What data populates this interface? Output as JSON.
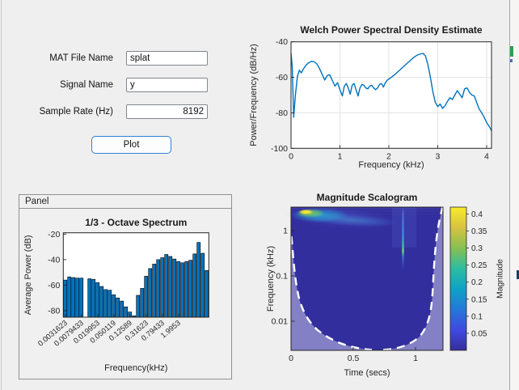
{
  "app": {
    "background": "#f0f0f0",
    "accent_blue": "#0072BD",
    "form": {
      "fields": [
        {
          "label": "MAT File Name",
          "value": "splat",
          "align": "left"
        },
        {
          "label": "Signal Name",
          "value": "y",
          "align": "left"
        },
        {
          "label": "Sample Rate (Hz)",
          "value": "8192",
          "align": "right"
        }
      ],
      "plot_button_label": "Plot"
    },
    "panel_title": "Panel"
  },
  "desktop_sliver": {
    "divider_color": "#a8a8a8",
    "fragments": [
      {
        "name": "green-fragment",
        "color": "#2f9e4f"
      },
      {
        "name": "blue-fragment",
        "color": "#4a6fd4"
      },
      {
        "name": "navy-fragment",
        "color": "#1d3e63"
      }
    ]
  },
  "chart_data": [
    {
      "type": "line",
      "title": "Welch Power Spectral Density Estimate",
      "xlabel": "Frequency (kHz)",
      "ylabel": "Power/Frequency (dB/Hz)",
      "xlim": [
        0,
        4.1
      ],
      "ylim": [
        -100,
        -40
      ],
      "xticks": [
        0,
        1,
        2,
        3,
        4
      ],
      "yticks": [
        -100,
        -80,
        -60,
        -40
      ],
      "grid": true,
      "line_color": "#0072BD",
      "series": [
        {
          "name": "PSD",
          "points": [
            [
              0,
              -46.5
            ],
            [
              0.025,
              -54
            ],
            [
              0.055,
              -82.5
            ],
            [
              0.09,
              -70
            ],
            [
              0.13,
              -59.5
            ],
            [
              0.17,
              -56
            ],
            [
              0.21,
              -57.5
            ],
            [
              0.26,
              -55
            ],
            [
              0.31,
              -53
            ],
            [
              0.36,
              -51.8
            ],
            [
              0.42,
              -51
            ],
            [
              0.48,
              -51.3
            ],
            [
              0.53,
              -52.5
            ],
            [
              0.58,
              -55
            ],
            [
              0.64,
              -58.5
            ],
            [
              0.69,
              -61.5
            ],
            [
              0.74,
              -59
            ],
            [
              0.79,
              -58.5
            ],
            [
              0.85,
              -62
            ],
            [
              0.9,
              -65
            ],
            [
              0.95,
              -63
            ],
            [
              1,
              -67
            ],
            [
              1.05,
              -70.5
            ],
            [
              1.09,
              -65
            ],
            [
              1.13,
              -63.5
            ],
            [
              1.17,
              -66
            ],
            [
              1.21,
              -69.5
            ],
            [
              1.25,
              -64.5
            ],
            [
              1.29,
              -63.5
            ],
            [
              1.33,
              -67
            ],
            [
              1.37,
              -70.5
            ],
            [
              1.41,
              -66
            ],
            [
              1.45,
              -64
            ],
            [
              1.49,
              -64.5
            ],
            [
              1.53,
              -66
            ],
            [
              1.57,
              -66.5
            ],
            [
              1.61,
              -65
            ],
            [
              1.65,
              -64.5
            ],
            [
              1.69,
              -66
            ],
            [
              1.73,
              -67
            ],
            [
              1.77,
              -66
            ],
            [
              1.81,
              -64
            ],
            [
              1.85,
              -63.5
            ],
            [
              1.89,
              -65.5
            ],
            [
              1.93,
              -63
            ],
            [
              1.97,
              -61.5
            ],
            [
              2.05,
              -60
            ],
            [
              2.12,
              -58.5
            ],
            [
              2.2,
              -56.5
            ],
            [
              2.3,
              -54
            ],
            [
              2.4,
              -51.5
            ],
            [
              2.5,
              -49
            ],
            [
              2.58,
              -47.5
            ],
            [
              2.65,
              -46.8
            ],
            [
              2.7,
              -46.5
            ],
            [
              2.75,
              -48
            ],
            [
              2.8,
              -53
            ],
            [
              2.85,
              -60
            ],
            [
              2.9,
              -68
            ],
            [
              2.95,
              -74
            ],
            [
              3,
              -76.5
            ],
            [
              3.05,
              -75
            ],
            [
              3.1,
              -77.5
            ],
            [
              3.15,
              -76
            ],
            [
              3.2,
              -73.5
            ],
            [
              3.25,
              -71.5
            ],
            [
              3.3,
              -72.5
            ],
            [
              3.35,
              -70
            ],
            [
              3.4,
              -67.5
            ],
            [
              3.45,
              -69.5
            ],
            [
              3.5,
              -71.5
            ],
            [
              3.55,
              -66.5
            ],
            [
              3.6,
              -66
            ],
            [
              3.65,
              -68.5
            ],
            [
              3.7,
              -70
            ],
            [
              3.75,
              -70.5
            ],
            [
              3.8,
              -74.5
            ],
            [
              3.85,
              -78
            ],
            [
              3.9,
              -80
            ],
            [
              3.95,
              -82.5
            ],
            [
              4,
              -85.5
            ],
            [
              4.05,
              -87.5
            ],
            [
              4.1,
              -90
            ]
          ]
        }
      ]
    },
    {
      "type": "bar",
      "title": "1/3 - Octave Spectrum",
      "xlabel": "Frequency(kHz)",
      "ylabel": "Average Power (dB)",
      "ylim": [
        -85,
        -19
      ],
      "yticks": [
        -80,
        -60,
        -40,
        -20
      ],
      "bar_color": "#0072BD",
      "bar_edge": "#000000",
      "tick_labels": [
        "0.0031623",
        "0.0079433",
        "0.019953",
        "0.050119",
        "0.12589",
        "0.31623",
        "0.79433",
        "1.9953"
      ],
      "tick_every": 4,
      "values": [
        -56,
        -53.5,
        -54,
        -54.5,
        -54.5,
        null,
        -55,
        -55.5,
        -58,
        -61,
        -63.5,
        -64,
        -67.5,
        -70,
        -72.5,
        -77,
        -81,
        -84,
        -68,
        -62.5,
        -53,
        -47,
        -43.5,
        -40,
        -38.5,
        -36,
        -37.5,
        -39.5,
        -41.5,
        -42.5,
        -41.5,
        -40.5,
        -35.5,
        -26.5,
        -35,
        -48.5
      ]
    },
    {
      "type": "heatmap",
      "title": "Magnitude Scalogram",
      "xlabel": "Time (secs)",
      "ylabel": "Frequency (kHz)",
      "x_range_secs": [
        0,
        1.22
      ],
      "xticks": [
        0,
        0.5,
        1
      ],
      "y_scale": "log",
      "yticks_khz": [
        0.01,
        0.1,
        1
      ],
      "colormap": "parula",
      "background_color": "#322E9E",
      "colorbar": {
        "label": "Magnitude",
        "ticks": [
          0.05,
          0.1,
          0.15,
          0.2,
          0.25,
          0.3,
          0.35,
          0.4
        ]
      },
      "features": [
        {
          "name": "chirp-ridge",
          "time_secs": [
            0.02,
            0.55
          ],
          "freq_khz": [
            2.8,
            1.2
          ],
          "peak_magnitude": 0.45
        },
        {
          "name": "click-transient",
          "time_secs": [
            0.9,
            0.94
          ],
          "freq_khz": [
            0.15,
            3.2
          ],
          "peak_magnitude": 0.2
        }
      ],
      "cone_of_influence": {
        "style": "white-dashed",
        "outside_shaded": true
      }
    }
  ]
}
